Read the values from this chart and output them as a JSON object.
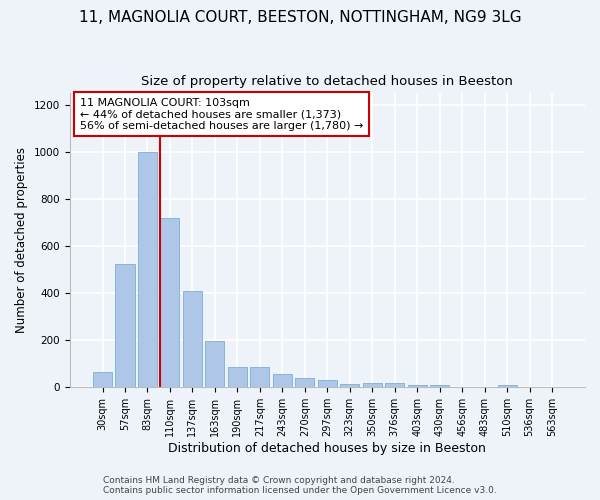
{
  "title_line1": "11, MAGNOLIA COURT, BEESTON, NOTTINGHAM, NG9 3LG",
  "title_line2": "Size of property relative to detached houses in Beeston",
  "xlabel": "Distribution of detached houses by size in Beeston",
  "ylabel": "Number of detached properties",
  "categories": [
    "30sqm",
    "57sqm",
    "83sqm",
    "110sqm",
    "137sqm",
    "163sqm",
    "190sqm",
    "217sqm",
    "243sqm",
    "270sqm",
    "297sqm",
    "323sqm",
    "350sqm",
    "376sqm",
    "403sqm",
    "430sqm",
    "456sqm",
    "483sqm",
    "510sqm",
    "536sqm",
    "563sqm"
  ],
  "values": [
    65,
    525,
    1000,
    720,
    410,
    197,
    88,
    88,
    55,
    40,
    33,
    15,
    18,
    19,
    8,
    8,
    2,
    0,
    10,
    0,
    0
  ],
  "bar_color": "#aec6e8",
  "bar_edge_color": "#7aafd4",
  "vline_color": "#cc0000",
  "annotation_text": "11 MAGNOLIA COURT: 103sqm\n← 44% of detached houses are smaller (1,373)\n56% of semi-detached houses are larger (1,780) →",
  "annotation_box_color": "#ffffff",
  "annotation_box_edge_color": "#cc0000",
  "ylim": [
    0,
    1250
  ],
  "yticks": [
    0,
    200,
    400,
    600,
    800,
    1000,
    1200
  ],
  "background_color": "#eef2f9",
  "footer_line1": "Contains HM Land Registry data © Crown copyright and database right 2024.",
  "footer_line2": "Contains public sector information licensed under the Open Government Licence v3.0.",
  "grid_color": "#ffffff",
  "title_fontsize": 11,
  "subtitle_fontsize": 9.5,
  "xlabel_fontsize": 9,
  "ylabel_fontsize": 8.5,
  "tick_fontsize": 7,
  "footer_fontsize": 6.5,
  "annotation_fontsize": 8
}
